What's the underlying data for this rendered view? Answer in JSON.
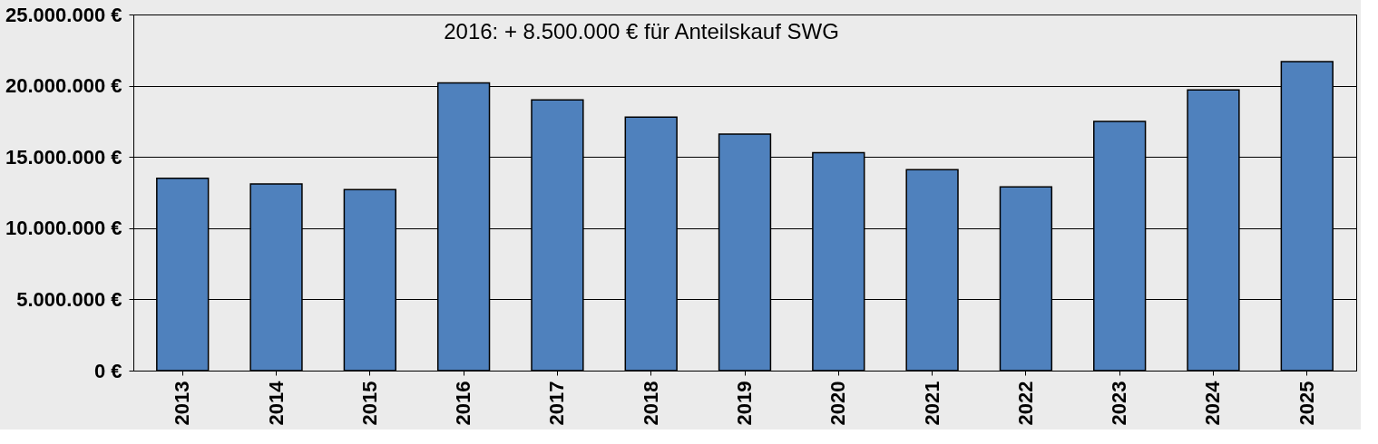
{
  "chart_data": {
    "type": "bar",
    "categories": [
      "2013",
      "2014",
      "2015",
      "2016",
      "2017",
      "2018",
      "2019",
      "2020",
      "2021",
      "2022",
      "2023",
      "2024",
      "2025"
    ],
    "values": [
      13500000,
      13100000,
      12700000,
      20200000,
      19000000,
      17800000,
      16600000,
      15300000,
      14100000,
      12900000,
      17500000,
      19700000,
      21700000
    ],
    "color": "#4f81bd",
    "ylim": [
      0,
      25000000
    ],
    "yticks": [
      {
        "value": 0,
        "label": "0 €"
      },
      {
        "value": 5000000,
        "label": "5.000.000 €"
      },
      {
        "value": 10000000,
        "label": "10.000.000 €"
      },
      {
        "value": 15000000,
        "label": "15.000.000 €"
      },
      {
        "value": 20000000,
        "label": "20.000.000 €"
      },
      {
        "value": 25000000,
        "label": "25.000.000 €"
      }
    ],
    "grid": "y",
    "annotations": [
      "2016:  + 8.500.000 € für Anteilskauf SWG"
    ]
  }
}
